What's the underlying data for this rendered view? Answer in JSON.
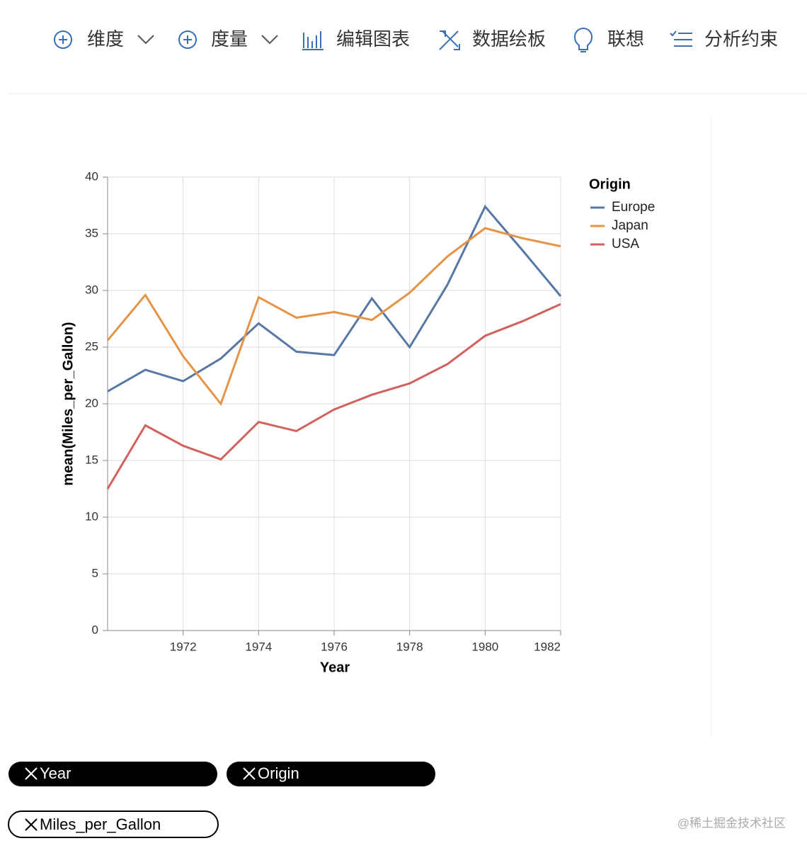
{
  "toolbar": [
    "维度",
    "度量",
    "编辑图表",
    "数据绘板",
    "联想",
    "分析约束"
  ],
  "chart_data": {
    "type": "line",
    "x_label": "Year",
    "y_label": "mean(Miles_per_Gallon)",
    "legend_title": "Origin",
    "legend_position": "right",
    "grid": true,
    "x": [
      1970,
      1971,
      1972,
      1973,
      1974,
      1975,
      1976,
      1977,
      1978,
      1979,
      1980,
      1981,
      1982
    ],
    "xlim": [
      1970,
      1982
    ],
    "xticks": [
      1972,
      1974,
      1976,
      1978,
      1980,
      1982
    ],
    "ylim": [
      0,
      40
    ],
    "yticks": [
      0,
      5,
      10,
      15,
      20,
      25,
      30,
      35,
      40
    ],
    "series": [
      {
        "name": "Europe",
        "color": "#5778a4",
        "values": [
          21.1,
          23.0,
          22.0,
          24.0,
          27.1,
          24.6,
          24.3,
          29.3,
          25.0,
          30.5,
          37.4,
          33.5,
          29.5
        ]
      },
      {
        "name": "Japan",
        "color": "#e49444",
        "values": [
          25.6,
          29.6,
          24.2,
          20.0,
          29.4,
          27.6,
          28.1,
          27.4,
          29.8,
          33.0,
          35.5,
          34.6,
          33.9
        ]
      },
      {
        "name": "USA",
        "color": "#d1615d",
        "values": [
          12.5,
          18.1,
          16.3,
          15.1,
          18.4,
          17.6,
          19.5,
          20.8,
          21.8,
          23.5,
          26.0,
          27.3,
          28.8
        ]
      }
    ]
  },
  "pills": [
    "Year",
    "Origin",
    "Miles_per_Gallon"
  ],
  "watermark": "@稀土掘金技术社区"
}
